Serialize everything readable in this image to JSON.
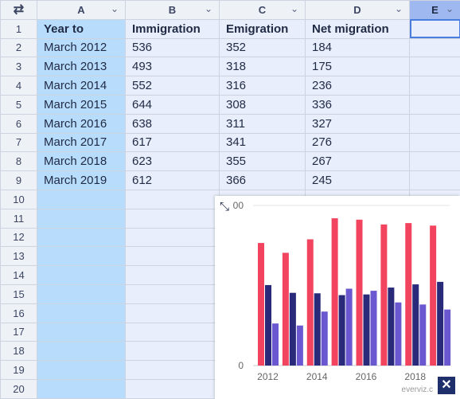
{
  "columns": [
    "A",
    "B",
    "C",
    "D",
    "E"
  ],
  "corner_icon": "swap-icon",
  "row_numbers": [
    "1",
    "2",
    "3",
    "4",
    "5",
    "6",
    "7",
    "8",
    "9",
    "10",
    "11",
    "12",
    "13",
    "14",
    "15",
    "16",
    "17",
    "18",
    "19",
    "20"
  ],
  "cells": [
    [
      "Year to",
      "Immigration",
      "Emigration",
      "Net migration",
      ""
    ],
    [
      "March 2012",
      "536",
      "352",
      "184",
      ""
    ],
    [
      "March 2013",
      "493",
      "318",
      "175",
      ""
    ],
    [
      "March 2014",
      "552",
      "316",
      "236",
      ""
    ],
    [
      "March 2015",
      "644",
      "308",
      "336",
      ""
    ],
    [
      "March 2016",
      "638",
      "311",
      "327",
      ""
    ],
    [
      "March 2017",
      "617",
      "341",
      "276",
      ""
    ],
    [
      "March 2018",
      "623",
      "355",
      "267",
      ""
    ],
    [
      "March 2019",
      "612",
      "366",
      "245",
      ""
    ]
  ],
  "chart_panel": {
    "close_label": "✕",
    "expand_icon": "expand-arrows-icon",
    "watermark": "everviz.c"
  },
  "chart_data": {
    "type": "bar",
    "categories": [
      "2012",
      "2013",
      "2014",
      "2015",
      "2016",
      "2017",
      "2018",
      "2019"
    ],
    "x_tick_labels": [
      "2012",
      "2014",
      "2016",
      "2018"
    ],
    "y_tick_labels": [
      "0",
      "00"
    ],
    "ylim": [
      0,
      700
    ],
    "series": [
      {
        "values": [
          536,
          493,
          552,
          644,
          638,
          617,
          623,
          612
        ],
        "color": "#f2445f"
      },
      {
        "values": [
          352,
          318,
          316,
          308,
          311,
          341,
          355,
          366
        ],
        "color": "#2a2a7a"
      },
      {
        "values": [
          184,
          175,
          236,
          336,
          327,
          276,
          267,
          245
        ],
        "color": "#6a58d0"
      }
    ],
    "grid": true
  }
}
